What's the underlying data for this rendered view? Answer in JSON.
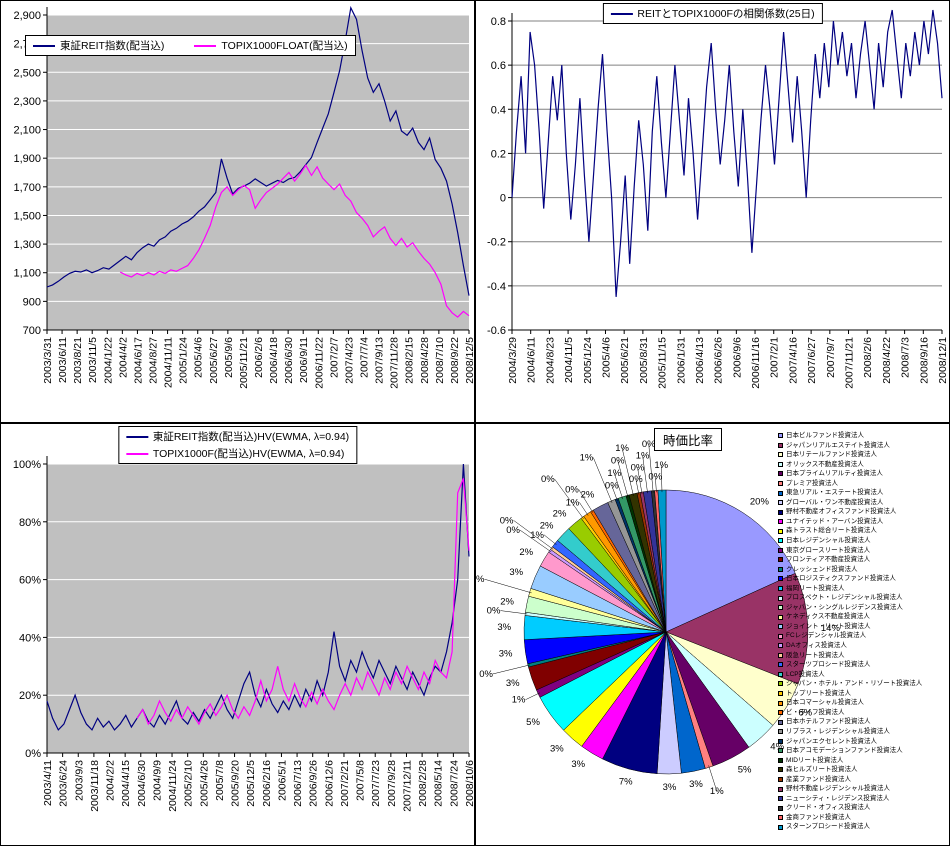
{
  "chart_data": [
    {
      "type": "line",
      "title": "",
      "legend_position": "top-left-inside",
      "plot_bg": "#C0C0C0",
      "grid_color": "#FFFFFF",
      "y_min": 700,
      "y_max": 2900,
      "y_tick_values": [
        700,
        900,
        1100,
        1300,
        1500,
        1700,
        1900,
        2100,
        2300,
        2500,
        2700,
        2900
      ],
      "y_tick_labels": [
        "700",
        "900",
        "1,100",
        "1,300",
        "1,500",
        "1,700",
        "1,900",
        "2,100",
        "2,300",
        "2,500",
        "2,700",
        "2,900"
      ],
      "x_labels": [
        "2003/3/31",
        "2003/6/11",
        "2003/8/21",
        "2003/11/5",
        "2004/1/22",
        "2004/4/2",
        "2004/6/17",
        "2004/8/27",
        "2004/11/11",
        "2005/1/24",
        "2005/4/6",
        "2005/6/27",
        "2005/9/6",
        "2005/11/21",
        "2006/2/6",
        "2006/4/18",
        "2006/6/30",
        "2006/9/11",
        "2006/11/22",
        "2007/2/7",
        "2007/4/23",
        "2007/7/4",
        "2007/9/13",
        "2007/11/28",
        "2008/2/15",
        "2008/4/28",
        "2008/7/10",
        "2008/9/22",
        "2008/12/5"
      ],
      "series": [
        {
          "name": "東証REIT指数(配当込)",
          "color": "#000080",
          "values": [
            1000,
            1015,
            1040,
            1070,
            1095,
            1110,
            1105,
            1120,
            1100,
            1115,
            1135,
            1125,
            1155,
            1185,
            1215,
            1190,
            1240,
            1275,
            1300,
            1285,
            1330,
            1350,
            1390,
            1410,
            1440,
            1460,
            1490,
            1530,
            1560,
            1610,
            1660,
            1895,
            1760,
            1650,
            1690,
            1705,
            1725,
            1755,
            1730,
            1705,
            1725,
            1745,
            1730,
            1755,
            1765,
            1805,
            1855,
            1905,
            2010,
            2110,
            2210,
            2360,
            2510,
            2720,
            2950,
            2870,
            2650,
            2460,
            2360,
            2420,
            2300,
            2160,
            2230,
            2090,
            2060,
            2110,
            2010,
            1960,
            2040,
            1890,
            1830,
            1740,
            1580,
            1380,
            1150,
            940
          ]
        },
        {
          "name": "TOPIX1000FLOAT(配当込)",
          "color": "#FF00FF",
          "values": [
            null,
            null,
            null,
            null,
            null,
            null,
            null,
            null,
            null,
            null,
            null,
            null,
            null,
            1105,
            1085,
            1070,
            1095,
            1080,
            1100,
            1085,
            1110,
            1095,
            1120,
            1110,
            1130,
            1150,
            1200,
            1260,
            1340,
            1430,
            1560,
            1660,
            1700,
            1640,
            1680,
            1710,
            1680,
            1550,
            1610,
            1660,
            1690,
            1720,
            1760,
            1800,
            1740,
            1790,
            1850,
            1780,
            1840,
            1760,
            1720,
            1680,
            1720,
            1640,
            1600,
            1520,
            1480,
            1430,
            1350,
            1390,
            1420,
            1340,
            1290,
            1340,
            1280,
            1310,
            1250,
            1200,
            1160,
            1100,
            1020,
            870,
            820,
            790,
            830,
            800
          ]
        }
      ]
    },
    {
      "type": "line",
      "title": "",
      "legend_position": "top-center",
      "plot_bg": "#FFFFFF",
      "grid_color": "#808080",
      "y_min": -0.6,
      "y_max": 0.8,
      "y_tick_values": [
        -0.6,
        -0.4,
        -0.2,
        0,
        0.2,
        0.4,
        0.6,
        0.8
      ],
      "y_tick_labels": [
        "-0.6",
        "-0.4",
        "-0.2",
        "0",
        "0.2",
        "0.4",
        "0.6",
        "0.8"
      ],
      "x_labels": [
        "2004/3/29",
        "2004/6/11",
        "2004/8/23",
        "2004/11/5",
        "2005/1/24",
        "2005/4/6",
        "2005/6/21",
        "2005/8/31",
        "2005/11/15",
        "2006/1/31",
        "2006/4/13",
        "2006/6/26",
        "2006/9/6",
        "2006/11/16",
        "2007/2/1",
        "2007/4/16",
        "2007/6/27",
        "2007/9/7",
        "2007/11/21",
        "2008/2/6",
        "2008/4/22",
        "2008/7/3",
        "2008/9/16",
        "2008/12/1"
      ],
      "series": [
        {
          "name": "REITとTOPIX1000Fの相関係数(25日)",
          "color": "#000080",
          "values": [
            0.0,
            0.3,
            0.55,
            0.2,
            0.75,
            0.6,
            0.3,
            -0.05,
            0.25,
            0.55,
            0.35,
            0.6,
            0.2,
            -0.1,
            0.15,
            0.45,
            0.1,
            -0.2,
            0.1,
            0.4,
            0.65,
            0.3,
            0.0,
            -0.45,
            -0.2,
            0.1,
            -0.3,
            0.05,
            0.35,
            0.15,
            -0.15,
            0.3,
            0.55,
            0.25,
            0.0,
            0.3,
            0.6,
            0.35,
            0.1,
            0.45,
            0.2,
            -0.1,
            0.2,
            0.5,
            0.7,
            0.4,
            0.15,
            0.35,
            0.6,
            0.3,
            0.05,
            0.4,
            0.1,
            -0.25,
            0.05,
            0.35,
            0.6,
            0.4,
            0.15,
            0.45,
            0.75,
            0.5,
            0.25,
            0.55,
            0.3,
            0.0,
            0.35,
            0.65,
            0.45,
            0.7,
            0.5,
            0.8,
            0.6,
            0.75,
            0.55,
            0.7,
            0.45,
            0.65,
            0.8,
            0.6,
            0.4,
            0.7,
            0.5,
            0.75,
            0.85,
            0.65,
            0.45,
            0.7,
            0.55,
            0.75,
            0.6,
            0.8,
            0.65,
            0.85,
            0.7,
            0.45
          ]
        }
      ]
    },
    {
      "type": "line",
      "title": "",
      "legend_position": "top-center",
      "plot_bg": "#C0C0C0",
      "grid_color": "#FFFFFF",
      "y_min": 0,
      "y_max": 100,
      "y_tick_values": [
        0,
        20,
        40,
        60,
        80,
        100
      ],
      "y_tick_labels": [
        "0%",
        "20%",
        "40%",
        "60%",
        "80%",
        "100%"
      ],
      "x_labels": [
        "2003/4/11",
        "2003/6/24",
        "2003/9/3",
        "2003/11/18",
        "2004/2/2",
        "2004/4/15",
        "2004/6/30",
        "2004/9/9",
        "2004/11/24",
        "2005/2/10",
        "2005/4/26",
        "2005/7/8",
        "2005/9/20",
        "2005/12/5",
        "2006/2/16",
        "2006/5/1",
        "2006/7/13",
        "2006/9/26",
        "2006/12/6",
        "2007/2/21",
        "2007/5/8",
        "2007/7/23",
        "2007/9/28",
        "2007/12/11",
        "2008/2/28",
        "2008/5/14",
        "2008/7/24",
        "2008/10/6"
      ],
      "series": [
        {
          "name": "東証REIT指数(配当込)HV(EWMA, λ=0.94)",
          "color": "#000080",
          "values": [
            18,
            12,
            8,
            10,
            15,
            20,
            14,
            10,
            8,
            12,
            9,
            11,
            8,
            10,
            13,
            9,
            12,
            15,
            11,
            9,
            13,
            10,
            14,
            18,
            12,
            10,
            14,
            11,
            15,
            12,
            16,
            20,
            15,
            12,
            18,
            24,
            28,
            20,
            16,
            22,
            17,
            14,
            18,
            15,
            20,
            16,
            22,
            18,
            25,
            20,
            28,
            42,
            30,
            25,
            32,
            28,
            35,
            30,
            26,
            32,
            28,
            24,
            30,
            26,
            22,
            28,
            24,
            20,
            26,
            30,
            28,
            35,
            45,
            60,
            100,
            68
          ]
        },
        {
          "name": "TOPIX1000F(配当込)HV(EWMA, λ=0.94)",
          "color": "#FF00FF",
          "values": [
            null,
            null,
            null,
            null,
            null,
            null,
            null,
            null,
            null,
            null,
            null,
            null,
            null,
            null,
            null,
            null,
            12,
            15,
            10,
            13,
            18,
            14,
            11,
            15,
            12,
            16,
            13,
            10,
            14,
            17,
            13,
            16,
            20,
            15,
            12,
            16,
            13,
            18,
            25,
            18,
            22,
            30,
            22,
            18,
            24,
            19,
            16,
            21,
            17,
            22,
            18,
            15,
            20,
            24,
            20,
            26,
            22,
            28,
            24,
            20,
            26,
            22,
            28,
            24,
            30,
            26,
            22,
            28,
            24,
            32,
            28,
            26,
            35,
            90,
            95,
            70
          ]
        }
      ]
    },
    {
      "type": "pie",
      "title": "時価比率",
      "legend_position": "right",
      "palette": [
        "#9999FF",
        "#993366",
        "#FFFFCC",
        "#CCFFFF",
        "#660066",
        "#FF8080",
        "#0066CC",
        "#CCCCFF",
        "#000080",
        "#FF00FF",
        "#FFFF00",
        "#00FFFF",
        "#800080",
        "#800000",
        "#008080",
        "#0000FF",
        "#00CCFF",
        "#CCFFFF",
        "#CCFFCC",
        "#FFFF99",
        "#99CCFF",
        "#FF99CC",
        "#CC99FF",
        "#FFCC99",
        "#3366FF",
        "#33CCCC",
        "#99CC00",
        "#FFCC00",
        "#FF9900",
        "#FF6600",
        "#666699",
        "#969696",
        "#003366",
        "#339966",
        "#003300",
        "#333300",
        "#993300",
        "#993366",
        "#333399",
        "#333333",
        "#FF6666",
        "#0099CC"
      ],
      "slices": [
        {
          "name": "日本ビルファンド投資法人",
          "value": 20,
          "label": "20%"
        },
        {
          "name": "ジャパンリアルエステイト投資法人",
          "value": 14,
          "label": "14%"
        },
        {
          "name": "日本リテールファンド投資法人",
          "value": 6,
          "label": "6%"
        },
        {
          "name": "オリックス不動産投資法人",
          "value": 4,
          "label": "4%"
        },
        {
          "name": "日本プライムリアルティ投資法人",
          "value": 5,
          "label": "5%"
        },
        {
          "name": "プレミア投資法人",
          "value": 1,
          "label": "1%"
        },
        {
          "name": "東急リアル・エステート投資法人",
          "value": 3,
          "label": "3%"
        },
        {
          "name": "グローバル・ワン不動産投資法人",
          "value": 3,
          "label": "3%"
        },
        {
          "name": "野村不動産オフィスファンド投資法人",
          "value": 7,
          "label": "7%"
        },
        {
          "name": "ユナイテッド・アーバン投資法人",
          "value": 3,
          "label": "3%"
        },
        {
          "name": "森トラスト総合リート投資法人",
          "value": 3,
          "label": "3%"
        },
        {
          "name": "日本レジデンシャル投資法人",
          "value": 5,
          "label": "5%"
        },
        {
          "name": "東京グロースリート投資法人",
          "value": 1,
          "label": "1%"
        },
        {
          "name": "フロンティア不動産投資法人",
          "value": 3,
          "label": "3%"
        },
        {
          "name": "クレッシェンド投資法人",
          "value": 0.4,
          "label": "0%"
        },
        {
          "name": "日本ロジスティクスファンド投資法人",
          "value": 3,
          "label": "3%"
        },
        {
          "name": "福岡リート投資法人",
          "value": 3,
          "label": "3%"
        },
        {
          "name": "プロスペクト・レジデンシャル投資法人",
          "value": 0.4,
          "label": "0%"
        },
        {
          "name": "ジャパン・シングルレジデンス投資法人",
          "value": 2,
          "label": "2%"
        },
        {
          "name": "ケネディクス不動産投資法人",
          "value": 1,
          "label": "1%"
        },
        {
          "name": "ジョイント・リート投資法人",
          "value": 3,
          "label": "3%"
        },
        {
          "name": "FCレジデンシャル投資法人",
          "value": 2,
          "label": "2%"
        },
        {
          "name": "DAオフィス投資法人",
          "value": 0.4,
          "label": "0%"
        },
        {
          "name": "阪急リート投資法人",
          "value": 0.4,
          "label": "0%"
        },
        {
          "name": "スターツプロシード投資法人",
          "value": 1,
          "label": "1%"
        },
        {
          "name": "LCP投資法人",
          "value": 2,
          "label": "2%"
        },
        {
          "name": "ジャパン・ホテル・アンド・リゾート投資法人",
          "value": 2,
          "label": "2%"
        },
        {
          "name": "トップリート投資法人",
          "value": 0.4,
          "label": "0%"
        },
        {
          "name": "日本コマーシャル投資法人",
          "value": 1,
          "label": "1%"
        },
        {
          "name": "ビ・ライフ投資法人",
          "value": 0.4,
          "label": "0%"
        },
        {
          "name": "日本ホテルファンド投資法人",
          "value": 2,
          "label": "2%"
        },
        {
          "name": "リプラス・レジデンシャル投資法人",
          "value": 1,
          "label": "1%"
        },
        {
          "name": "ジャパンエクセレント投資法人",
          "value": 0.4,
          "label": "0%"
        },
        {
          "name": "日本アコモデーションファンド投資法人",
          "value": 1,
          "label": "1%"
        },
        {
          "name": "MIDリート投資法人",
          "value": 0.4,
          "label": "0%"
        },
        {
          "name": "森ヒルズリート投資法人",
          "value": 1,
          "label": "1%"
        },
        {
          "name": "産業ファンド投資法人",
          "value": 0.4,
          "label": "0%"
        },
        {
          "name": "野村不動産レジデンシャル投資法人",
          "value": 0.4,
          "label": "0%"
        },
        {
          "name": "ニューシティ・レジデンス投資法人",
          "value": 1,
          "label": "1%"
        },
        {
          "name": "クリード・オフィス投資法人",
          "value": 0.4,
          "label": "0%"
        },
        {
          "name": "金商ファンド投資法人",
          "value": 0.4,
          "label": "0%"
        },
        {
          "name": "スターンプロシード投資法人",
          "value": 1,
          "label": "1%"
        }
      ]
    }
  ]
}
